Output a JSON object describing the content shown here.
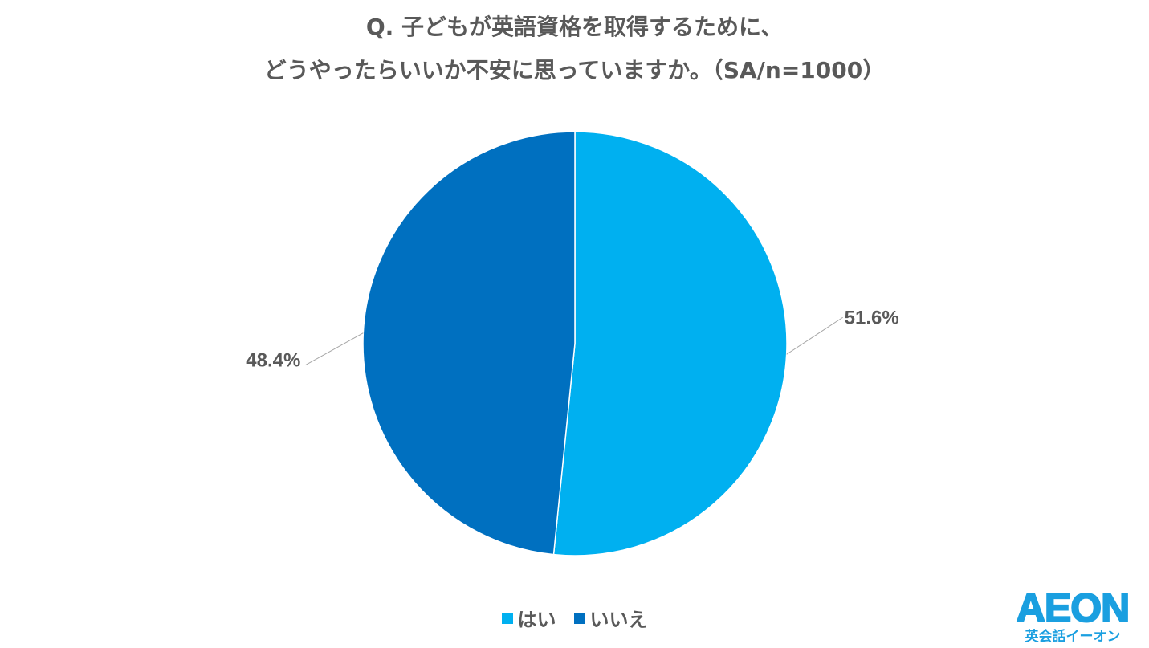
{
  "title": {
    "line1": "Q. 子どもが英語資格を取得するために、",
    "line2": "どうやったらいいか不安に思っていますか。（SA/n=1000）"
  },
  "chart_data": {
    "type": "pie",
    "slices": [
      {
        "name": "はい",
        "value": 51.6,
        "label": "51.6%",
        "color": "#00b0f0"
      },
      {
        "name": "いいえ",
        "value": 48.4,
        "label": "48.4%",
        "color": "#0070c0"
      }
    ],
    "start_angle": "12 o'clock, clockwise",
    "legend_position": "bottom"
  },
  "logo": {
    "mark": "AEON",
    "sub": "英会話イーオン"
  },
  "colors": {
    "yes": "#00b0f0",
    "no": "#0070c0",
    "text": "#595959",
    "leader": "#a6a6a6",
    "brand": "#1a9fe0"
  }
}
